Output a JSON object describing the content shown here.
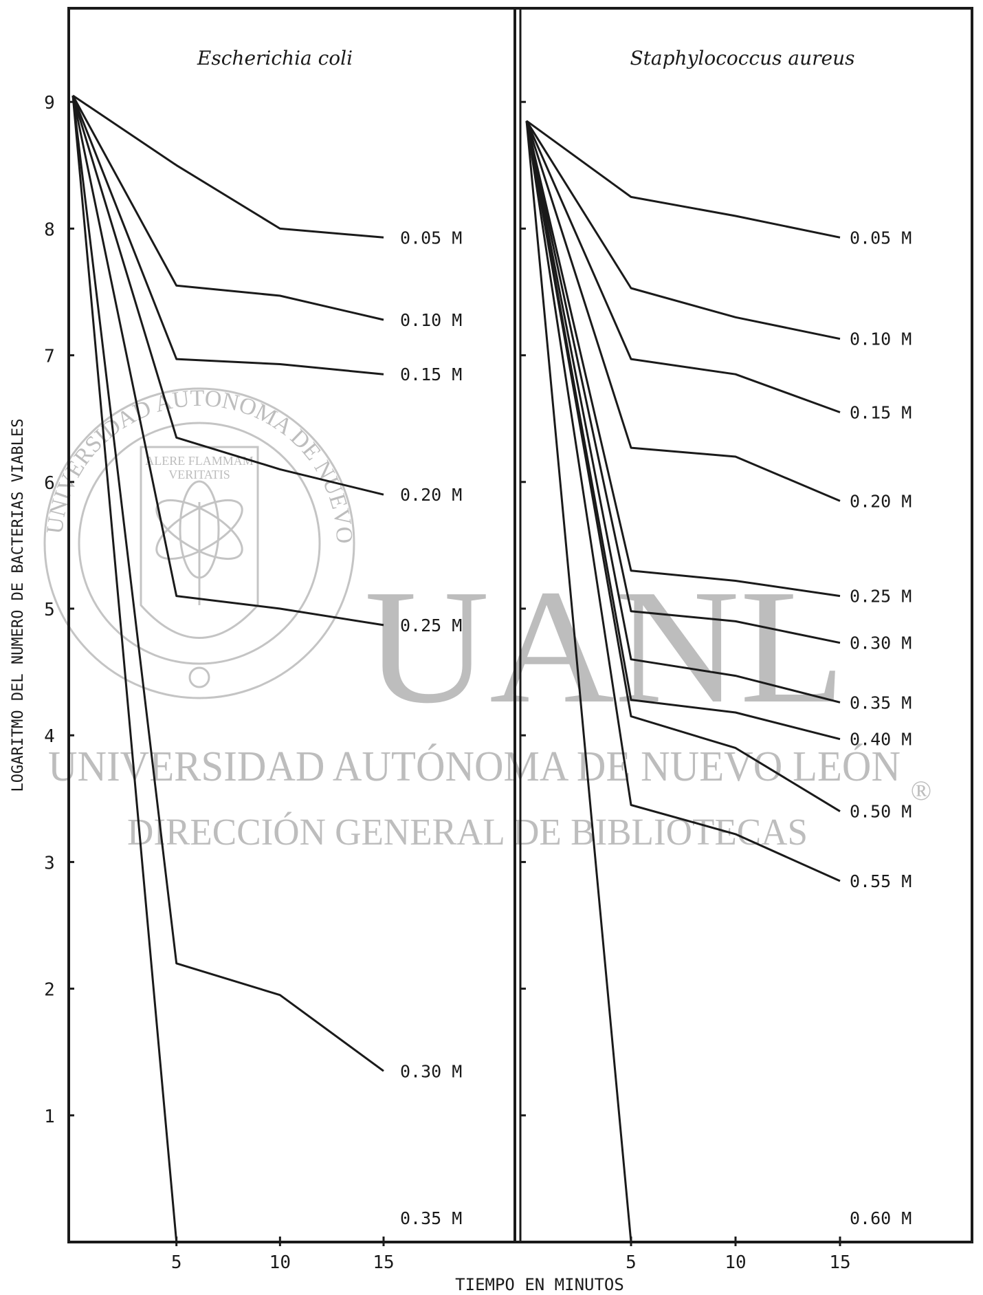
{
  "watermark": {
    "logo_text": "UANL",
    "line1": "UNIVERSIDAD AUTÓNOMA DE NUEVO LEÓN",
    "line2": "DIRECCIÓN GENERAL DE BIBLIOTECAS",
    "registered": "®",
    "seal_ring": "UNIVERSIDAD AUTONOMA DE NUEVO LEON",
    "seal_motto_1": "ALERE FLAMMAM",
    "seal_motto_2": "VERITATIS"
  },
  "colors": {
    "ink": "#1a1a1a",
    "watermark": "#bdbdbd"
  },
  "chart_data": [
    {
      "type": "line",
      "title": "Escherichia coli",
      "xlabel": "TIEMPO EN MINUTOS",
      "ylabel": "LOGARITMO DEL NUMERO DE BACTERIAS VIABLES",
      "xlim": [
        0,
        15
      ],
      "ylim": [
        0,
        9
      ],
      "x_ticks": [
        5,
        10,
        15
      ],
      "y_ticks": [
        1,
        2,
        3,
        4,
        5,
        6,
        7,
        8,
        9
      ],
      "grid": false,
      "series": [
        {
          "name": "0.05 M",
          "x": [
            0,
            5,
            10,
            15
          ],
          "y": [
            9.05,
            8.5,
            8.0,
            7.93
          ]
        },
        {
          "name": "0.10 M",
          "x": [
            0,
            5,
            10,
            15
          ],
          "y": [
            9.05,
            7.55,
            7.47,
            7.28
          ]
        },
        {
          "name": "0.15 M",
          "x": [
            0,
            5,
            10,
            15
          ],
          "y": [
            9.05,
            6.97,
            6.93,
            6.85
          ]
        },
        {
          "name": "0.20 M",
          "x": [
            0,
            5,
            10,
            15
          ],
          "y": [
            9.05,
            6.35,
            6.1,
            5.9
          ]
        },
        {
          "name": "0.25 M",
          "x": [
            0,
            5,
            10,
            15
          ],
          "y": [
            9.05,
            5.1,
            5.0,
            4.87
          ]
        },
        {
          "name": "0.30 M",
          "x": [
            0,
            5,
            10,
            15
          ],
          "y": [
            9.05,
            2.2,
            1.95,
            1.35
          ]
        },
        {
          "name": "0.35 M",
          "x": [
            0,
            5,
            10,
            15
          ],
          "y": [
            9.05,
            0.0,
            0.0,
            0.0
          ]
        }
      ]
    },
    {
      "type": "line",
      "title": "Staphylococcus aureus",
      "xlabel": "TIEMPO EN MINUTOS",
      "ylabel": "LOGARITMO DEL NUMERO DE BACTERIAS VIABLES",
      "xlim": [
        0,
        15
      ],
      "ylim": [
        0,
        9
      ],
      "x_ticks": [
        5,
        10,
        15
      ],
      "y_ticks": [
        1,
        2,
        3,
        4,
        5,
        6,
        7,
        8,
        9
      ],
      "grid": false,
      "series": [
        {
          "name": "0.05 M",
          "x": [
            0,
            5,
            10,
            15
          ],
          "y": [
            8.85,
            8.25,
            8.1,
            7.93
          ]
        },
        {
          "name": "0.10 M",
          "x": [
            0,
            5,
            10,
            15
          ],
          "y": [
            8.85,
            7.53,
            7.3,
            7.13
          ]
        },
        {
          "name": "0.15 M",
          "x": [
            0,
            5,
            10,
            15
          ],
          "y": [
            8.85,
            6.97,
            6.85,
            6.55
          ]
        },
        {
          "name": "0.20 M",
          "x": [
            0,
            5,
            10,
            15
          ],
          "y": [
            8.85,
            6.27,
            6.2,
            5.85
          ]
        },
        {
          "name": "0.25 M",
          "x": [
            0,
            5,
            10,
            15
          ],
          "y": [
            8.85,
            5.3,
            5.22,
            5.1
          ]
        },
        {
          "name": "0.30 M",
          "x": [
            0,
            5,
            10,
            15
          ],
          "y": [
            8.85,
            4.98,
            4.9,
            4.73
          ]
        },
        {
          "name": "0.35 M",
          "x": [
            0,
            5,
            10,
            15
          ],
          "y": [
            8.85,
            4.6,
            4.47,
            4.26
          ]
        },
        {
          "name": "0.40 M",
          "x": [
            0,
            5,
            10,
            15
          ],
          "y": [
            8.85,
            4.28,
            4.18,
            3.97
          ]
        },
        {
          "name": "0.50 M",
          "x": [
            0,
            5,
            10,
            15
          ],
          "y": [
            8.85,
            4.15,
            3.9,
            3.4
          ]
        },
        {
          "name": "0.55 M",
          "x": [
            0,
            5,
            10,
            15
          ],
          "y": [
            8.85,
            3.45,
            3.22,
            2.85
          ]
        },
        {
          "name": "0.60 M",
          "x": [
            0,
            5,
            10,
            15
          ],
          "y": [
            8.85,
            0.0,
            0.0,
            0.0
          ]
        }
      ]
    }
  ]
}
